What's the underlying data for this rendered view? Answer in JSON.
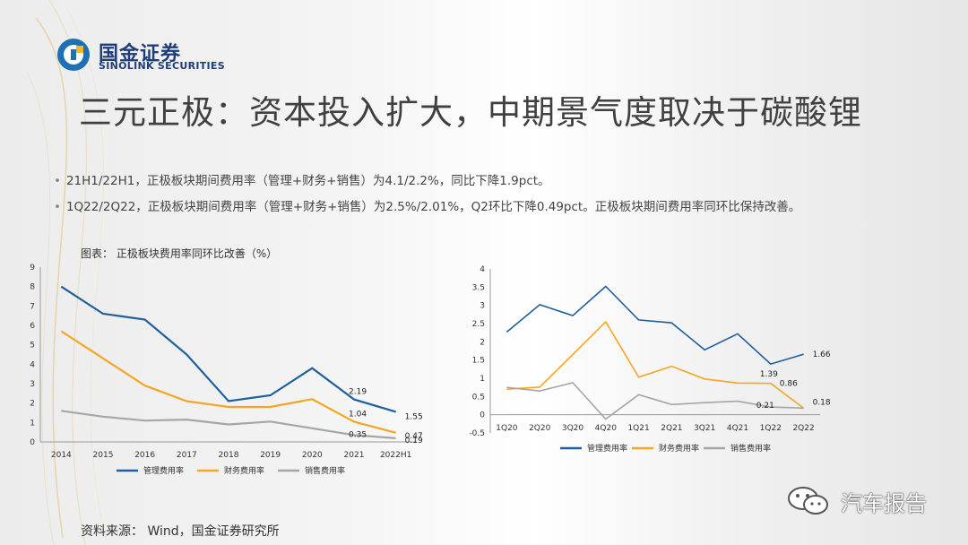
{
  "header": {
    "company_cn": "国金证券",
    "company_en": "SINOLINK SECURITIES"
  },
  "title": "三元正极：资本投入扩大，中期景气度取决于碳酸锂",
  "bullets": [
    "21H1/22H1，正极板块期间费用率（管理+财务+销售）为4.1/2.2%，同比下降1.9pct。",
    "1Q22/2Q22，正极板块期间费用率（管理+财务+销售）为2.5%/2.01%，Q2环比下降0.49pct。正极板块期间费用率同环比保持改善。"
  ],
  "chart_caption": "图表： 正极板块费用率同环比改善（%）",
  "source": "资料来源： Wind，国金证券研究所",
  "watermark": "汽车报告",
  "colors": {
    "mgmt": "#1f5f9e",
    "fin": "#f5a623",
    "sales": "#a6a6a6"
  },
  "chart_data": [
    {
      "type": "line",
      "categories": [
        "2014",
        "2015",
        "2016",
        "2017",
        "2018",
        "2019",
        "2020",
        "2021",
        "2022H1"
      ],
      "series": [
        {
          "name": "管理费用率",
          "values": [
            8.0,
            6.6,
            6.3,
            4.5,
            2.1,
            2.4,
            3.8,
            2.19,
            1.55
          ]
        },
        {
          "name": "财务费用率",
          "values": [
            5.7,
            4.3,
            2.9,
            2.1,
            1.8,
            1.8,
            2.2,
            1.04,
            0.47
          ]
        },
        {
          "name": "销售费用率",
          "values": [
            1.6,
            1.3,
            1.1,
            1.15,
            0.9,
            1.05,
            0.7,
            0.35,
            0.19
          ]
        }
      ],
      "ylim": [
        0,
        9
      ],
      "yticks": [
        0,
        1,
        2,
        3,
        4,
        5,
        6,
        7,
        8,
        9
      ],
      "data_labels": [
        {
          "series": 0,
          "index": 7,
          "text": "2.19"
        },
        {
          "series": 0,
          "index": 8,
          "text": "1.55"
        },
        {
          "series": 1,
          "index": 7,
          "text": "1.04"
        },
        {
          "series": 1,
          "index": 8,
          "text": "0.47"
        },
        {
          "series": 2,
          "index": 7,
          "text": "0.35"
        },
        {
          "series": 2,
          "index": 8,
          "text": "0.19"
        }
      ],
      "legend": "bottom"
    },
    {
      "type": "line",
      "categories": [
        "1Q20",
        "2Q20",
        "3Q20",
        "4Q20",
        "1Q21",
        "2Q21",
        "3Q21",
        "4Q21",
        "1Q22",
        "2Q22"
      ],
      "series": [
        {
          "name": "管理费用率",
          "values": [
            2.27,
            3.02,
            2.72,
            3.52,
            2.6,
            2.52,
            1.78,
            2.22,
            1.39,
            1.66
          ]
        },
        {
          "name": "财务费用率",
          "values": [
            0.7,
            0.76,
            1.65,
            2.55,
            1.03,
            1.33,
            0.98,
            0.87,
            0.86,
            0.18
          ]
        },
        {
          "name": "销售费用率",
          "values": [
            0.75,
            0.65,
            0.88,
            -0.12,
            0.55,
            0.28,
            0.33,
            0.37,
            0.21,
            0.18
          ]
        }
      ],
      "ylim": [
        -0.5,
        4
      ],
      "yticks": [
        "4",
        "3.5",
        "3",
        "2.5",
        "2",
        "1.5",
        "1",
        "0.5",
        "0",
        "-0.5"
      ],
      "data_labels": [
        {
          "series": 0,
          "index": 8,
          "text": "1.39"
        },
        {
          "series": 0,
          "index": 9,
          "text": "1.66"
        },
        {
          "series": 1,
          "index": 8,
          "text": "0.86"
        },
        {
          "series": 2,
          "index": 8,
          "text": "0.21"
        },
        {
          "series": 2,
          "index": 9,
          "text": "0.18"
        }
      ],
      "legend": "bottom"
    }
  ]
}
